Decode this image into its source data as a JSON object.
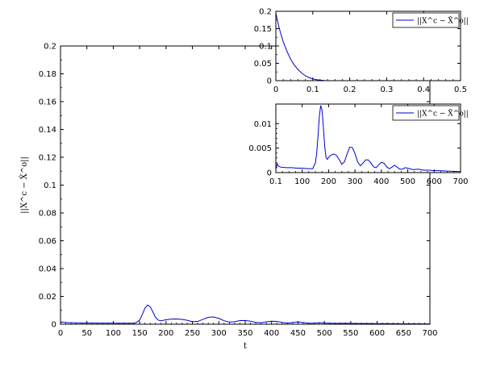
{
  "chart_data": [
    {
      "id": "main",
      "type": "line",
      "xlabel": "t",
      "ylabel": "||X^c − X̂^o||",
      "xlim": [
        0,
        700
      ],
      "ylim": [
        0,
        0.2
      ],
      "xticks": [
        "0",
        "50",
        "100",
        "150",
        "200",
        "250",
        "300",
        "350",
        "400",
        "450",
        "500",
        "550",
        "600",
        "650",
        "700"
      ],
      "yticks": [
        "0",
        "0.02",
        "0.04",
        "0.06",
        "0.08",
        "0.1",
        "0.12",
        "0.14",
        "0.16",
        "0.18",
        "0.2"
      ],
      "grid": false,
      "series": [
        {
          "color": "#0000cc",
          "x": [
            0,
            3,
            8,
            20,
            40,
            60,
            80,
            100,
            120,
            140,
            145,
            150,
            155,
            160,
            165,
            170,
            175,
            180,
            185,
            190,
            195,
            200,
            210,
            220,
            230,
            240,
            250,
            260,
            270,
            280,
            290,
            300,
            310,
            320,
            330,
            340,
            350,
            360,
            370,
            380,
            390,
            400,
            410,
            420,
            430,
            440,
            450,
            460,
            470,
            480,
            490,
            500,
            520,
            540,
            560,
            580,
            600,
            620,
            650,
            700
          ],
          "y": [
            0.0005,
            0.0018,
            0.0012,
            0.0011,
            0.0009,
            0.0009,
            0.0008,
            0.0008,
            0.0007,
            0.0007,
            0.0015,
            0.003,
            0.007,
            0.0115,
            0.0138,
            0.0125,
            0.009,
            0.005,
            0.003,
            0.0025,
            0.0028,
            0.0032,
            0.0037,
            0.0038,
            0.0035,
            0.0028,
            0.0018,
            0.002,
            0.0035,
            0.005,
            0.0052,
            0.0042,
            0.0025,
            0.0015,
            0.0018,
            0.0026,
            0.0027,
            0.0022,
            0.0013,
            0.0011,
            0.0017,
            0.0022,
            0.002,
            0.0013,
            0.0008,
            0.0012,
            0.0016,
            0.0012,
            0.0007,
            0.0008,
            0.0011,
            0.0009,
            0.0006,
            0.0007,
            0.0005,
            0.0005,
            0.0004,
            0.0004,
            0.0003,
            0.0002
          ]
        }
      ]
    },
    {
      "id": "inset-top",
      "type": "line",
      "xlim": [
        0,
        0.5
      ],
      "ylim": [
        0,
        0.2
      ],
      "xticks": [
        "0",
        "0.1",
        "0.2",
        "0.3",
        "0.4",
        "0.5"
      ],
      "yticks": [
        "0",
        "0.05",
        "0.1",
        "0.15",
        "0.2"
      ],
      "legend": {
        "position": "top-right",
        "entries": [
          "||X^c − X̂^o||"
        ]
      },
      "series": [
        {
          "name": "||X^c − X̂^o||",
          "color": "#0000cc",
          "x": [
            0,
            0.005,
            0.01,
            0.02,
            0.03,
            0.04,
            0.05,
            0.06,
            0.07,
            0.08,
            0.09,
            0.1,
            0.11,
            0.12,
            0.13
          ],
          "y": [
            0.195,
            0.17,
            0.148,
            0.112,
            0.085,
            0.062,
            0.045,
            0.032,
            0.022,
            0.014,
            0.009,
            0.005,
            0.003,
            0.0015,
            0.0008
          ]
        }
      ]
    },
    {
      "id": "inset-bottom",
      "type": "line",
      "xlim": [
        0.1,
        700
      ],
      "ylim": [
        0,
        0.014
      ],
      "xticks": [
        "0.1",
        "100",
        "200",
        "300",
        "400",
        "500",
        "600",
        "700"
      ],
      "yticks": [
        "0",
        "0.005",
        "0.01"
      ],
      "legend": {
        "position": "top-right",
        "entries": [
          "||X^c − X̂^o||"
        ]
      },
      "series": [
        {
          "name": "||X^c − X̂^o||",
          "color": "#0000cc",
          "x": [
            0.1,
            5,
            10,
            20,
            40,
            60,
            80,
            100,
            120,
            140,
            150,
            155,
            160,
            165,
            170,
            175,
            180,
            185,
            190,
            195,
            200,
            210,
            220,
            230,
            240,
            250,
            260,
            270,
            280,
            290,
            300,
            310,
            320,
            330,
            340,
            350,
            360,
            370,
            380,
            390,
            400,
            410,
            420,
            430,
            440,
            450,
            460,
            470,
            480,
            490,
            500,
            520,
            540,
            560,
            580,
            600,
            620,
            650,
            700
          ],
          "y": [
            0.0008,
            0.0018,
            0.0013,
            0.0011,
            0.001,
            0.001,
            0.0009,
            0.0009,
            0.0008,
            0.0008,
            0.002,
            0.004,
            0.0075,
            0.0115,
            0.0137,
            0.0128,
            0.0095,
            0.0055,
            0.0032,
            0.0027,
            0.0031,
            0.0036,
            0.0038,
            0.0035,
            0.0027,
            0.0017,
            0.0022,
            0.0038,
            0.0052,
            0.0051,
            0.0039,
            0.0022,
            0.0014,
            0.0019,
            0.0026,
            0.0026,
            0.002,
            0.0012,
            0.001,
            0.0016,
            0.0021,
            0.0019,
            0.0012,
            0.0008,
            0.0011,
            0.0015,
            0.0011,
            0.0007,
            0.0007,
            0.001,
            0.0009,
            0.0006,
            0.0007,
            0.0005,
            0.0005,
            0.0004,
            0.0004,
            0.0003,
            0.0002
          ]
        }
      ]
    }
  ]
}
